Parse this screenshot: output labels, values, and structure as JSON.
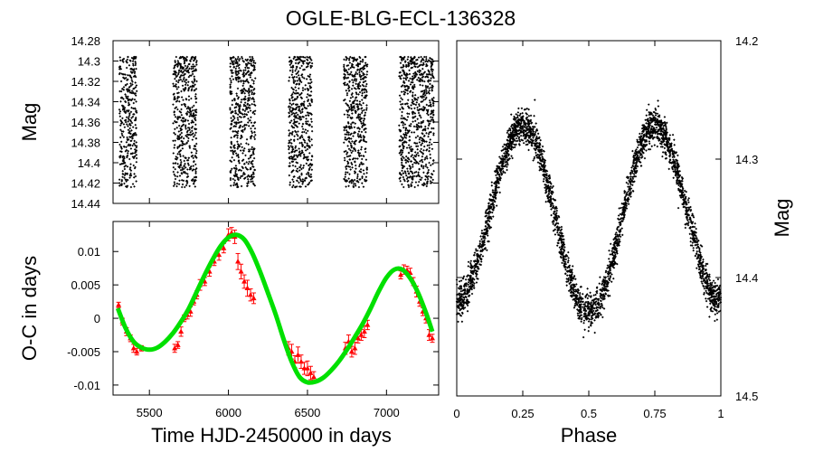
{
  "title": "OGLE-BLG-ECL-136328",
  "colors": {
    "points": "#000000",
    "oc_points": "#ff0000",
    "fit": "#00e000",
    "frame": "#000000"
  },
  "chart_data": [
    {
      "id": "lightcurve",
      "type": "scatter",
      "ylabel": "Mag",
      "xlabel": "",
      "xlim": [
        5270,
        7330
      ],
      "ylim": [
        14.44,
        14.28
      ],
      "y_inverted": true,
      "yticks": [
        "14.28",
        "14.3",
        "14.32",
        "14.34",
        "14.36",
        "14.38",
        "14.4",
        "14.42",
        "14.44"
      ],
      "yticks_values": [
        14.28,
        14.3,
        14.32,
        14.34,
        14.36,
        14.38,
        14.4,
        14.42,
        14.44
      ],
      "mag_range": [
        14.296,
        14.424
      ],
      "seasons": [
        {
          "start": 5310,
          "end": 5420
        },
        {
          "start": 5650,
          "end": 5800
        },
        {
          "start": 6010,
          "end": 6170
        },
        {
          "start": 6380,
          "end": 6530
        },
        {
          "start": 6730,
          "end": 6880
        },
        {
          "start": 7080,
          "end": 7300
        }
      ]
    },
    {
      "id": "oc_diagram",
      "type": "line",
      "xlabel": "Time HJD-2450000 in days",
      "ylabel": "O-C in days",
      "xlim": [
        5270,
        7330
      ],
      "ylim": [
        -0.0115,
        0.0145
      ],
      "xticks": [
        "5500",
        "6000",
        "6500",
        "7000"
      ],
      "xticks_values": [
        5500,
        6000,
        6500,
        7000
      ],
      "yticks": [
        "0.01",
        "0.005",
        "0",
        "-0.005",
        "-0.01"
      ],
      "yticks_values": [
        0.01,
        0.005,
        0,
        -0.005,
        -0.01
      ],
      "series": [
        {
          "name": "fit",
          "x": [
            5300,
            5350,
            5400,
            5450,
            5500,
            5550,
            5600,
            5650,
            5700,
            5750,
            5800,
            5850,
            5900,
            5950,
            6000,
            6050,
            6100,
            6150,
            6200,
            6250,
            6300,
            6350,
            6400,
            6450,
            6500,
            6550,
            6600,
            6650,
            6700,
            6750,
            6800,
            6850,
            6900,
            6950,
            7000,
            7050,
            7100,
            7150,
            7200,
            7250,
            7290
          ],
          "y": [
            0.0015,
            -0.0015,
            -0.0035,
            -0.0044,
            -0.0047,
            -0.0044,
            -0.0035,
            -0.0022,
            -0.0005,
            0.0015,
            0.004,
            0.0065,
            0.0088,
            0.0108,
            0.0121,
            0.0125,
            0.0118,
            0.0098,
            0.007,
            0.0038,
            0.0005,
            -0.0032,
            -0.0065,
            -0.0088,
            -0.0096,
            -0.0095,
            -0.0089,
            -0.0078,
            -0.0064,
            -0.0047,
            -0.0028,
            -0.0008,
            0.0015,
            0.004,
            0.0061,
            0.0073,
            0.0073,
            0.006,
            0.0038,
            0.0008,
            -0.002
          ]
        },
        {
          "name": "observed",
          "x": [
            5305,
            5330,
            5355,
            5380,
            5400,
            5420,
            5450,
            5660,
            5680,
            5700,
            5720,
            5740,
            5760,
            5780,
            5800,
            5820,
            5850,
            5880,
            5910,
            5940,
            5970,
            6000,
            6020,
            6040,
            6060,
            6080,
            6100,
            6120,
            6140,
            6160,
            6380,
            6400,
            6420,
            6440,
            6460,
            6480,
            6500,
            6520,
            6540,
            6740,
            6760,
            6780,
            6800,
            6820,
            6840,
            6860,
            6880,
            7090,
            7110,
            7130,
            7150,
            7170,
            7190,
            7210,
            7230,
            7250,
            7270,
            7290
          ],
          "y": [
            0.002,
            -0.0005,
            -0.002,
            -0.003,
            -0.0045,
            -0.005,
            -0.0045,
            -0.0045,
            -0.004,
            -0.002,
            0.0,
            0.0005,
            0.001,
            0.0025,
            0.0035,
            0.005,
            0.0055,
            0.007,
            0.0085,
            0.0095,
            0.0105,
            0.0125,
            0.0128,
            0.0122,
            0.0085,
            0.007,
            0.0055,
            0.0045,
            0.0035,
            0.003,
            -0.0045,
            -0.005,
            -0.0065,
            -0.0055,
            -0.0065,
            -0.0075,
            -0.0075,
            -0.0082,
            -0.0088,
            -0.0045,
            -0.0035,
            -0.005,
            -0.0045,
            -0.003,
            -0.0025,
            -0.002,
            -0.001,
            0.0065,
            0.0073,
            0.0072,
            0.0068,
            0.0055,
            0.004,
            0.0025,
            0.001,
            0.0,
            -0.0025,
            -0.003
          ],
          "err": [
            0.0004,
            0.0005,
            0.0006,
            0.0005,
            0.0006,
            0.0005,
            0.0004,
            0.0006,
            0.0005,
            0.0007,
            0.0005,
            0.0006,
            0.0007,
            0.0005,
            0.0006,
            0.0008,
            0.0006,
            0.0007,
            0.0006,
            0.0008,
            0.0007,
            0.0009,
            0.0008,
            0.001,
            0.0012,
            0.0011,
            0.001,
            0.0012,
            0.0009,
            0.0008,
            0.001,
            0.0011,
            0.0009,
            0.0012,
            0.001,
            0.0009,
            0.0011,
            0.001,
            0.0008,
            0.0009,
            0.001,
            0.0008,
            0.0009,
            0.0007,
            0.0008,
            0.0009,
            0.0007,
            0.0006,
            0.0007,
            0.0006,
            0.0007,
            0.0006,
            0.0008,
            0.0007,
            0.0006,
            0.0007,
            0.0008,
            0.0006
          ]
        }
      ]
    },
    {
      "id": "phased",
      "type": "scatter",
      "xlabel": "Phase",
      "ylabel": "Mag",
      "xlim": [
        0,
        1
      ],
      "ylim": [
        14.5,
        14.2
      ],
      "y_inverted": true,
      "xticks": [
        "0",
        "0.25",
        "0.5",
        "0.75",
        "1"
      ],
      "xticks_values": [
        0,
        0.25,
        0.5,
        0.75,
        1
      ],
      "yticks": [
        "14.2",
        "14.3",
        "14.4",
        "14.5"
      ],
      "yticks_values": [
        14.2,
        14.3,
        14.4,
        14.5
      ],
      "model": {
        "max_mag": 14.272,
        "primary_min_mag": 14.43,
        "secondary_min_mag": 14.42,
        "scatter": 0.012
      }
    }
  ]
}
